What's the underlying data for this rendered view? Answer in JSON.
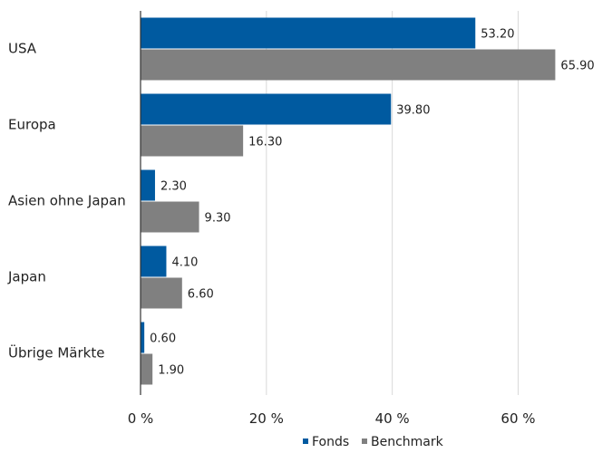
{
  "chart_data": {
    "type": "bar",
    "orientation": "horizontal",
    "categories": [
      "USA",
      "Europa",
      "Asien ohne Japan",
      "Japan",
      "Übrige Märkte"
    ],
    "series": [
      {
        "name": "Fonds",
        "values": [
          53.2,
          39.8,
          2.3,
          4.1,
          0.6
        ],
        "color": "#005AA0",
        "value_labels": [
          "53.20",
          "39.80",
          "2.30",
          "4.10",
          "0.60"
        ]
      },
      {
        "name": "Benchmark",
        "values": [
          65.9,
          16.3,
          9.3,
          6.6,
          1.9
        ],
        "color": "#808080",
        "value_labels": [
          "65.90",
          "16.30",
          "9.30",
          "6.60",
          "1.90"
        ]
      }
    ],
    "xlim": [
      0,
      68
    ],
    "x_ticks": [
      0,
      20,
      40,
      60
    ],
    "x_tick_labels": [
      "0 %",
      "20 %",
      "40 %",
      "60 %"
    ],
    "grid": "vertical",
    "legend_position": "bottom-center"
  }
}
